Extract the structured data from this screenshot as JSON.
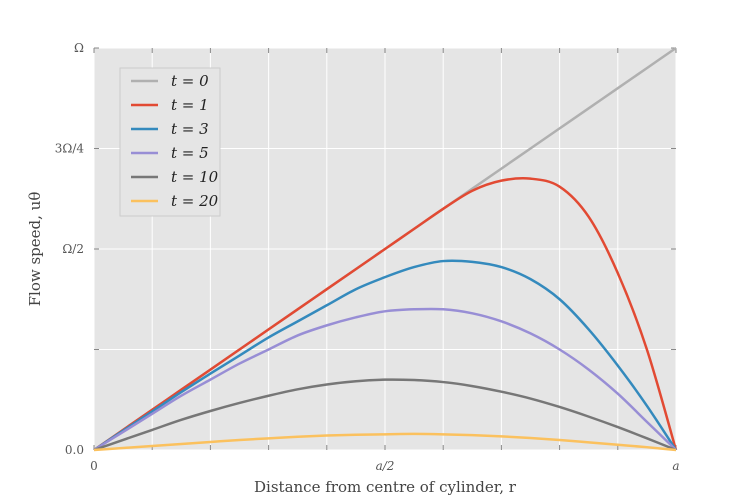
{
  "chart_data": {
    "type": "line",
    "title": "",
    "xlabel": "Distance from centre of cylinder, r",
    "ylabel": "Flow speed, uθ",
    "xlim": [
      0,
      1
    ],
    "ylim": [
      0,
      1
    ],
    "grid": true,
    "legend_position": "top-left",
    "background_color": "#e5e5e5",
    "x_ticks": [
      {
        "value": 0,
        "label": "0"
      },
      {
        "value": 0.1,
        "label": ""
      },
      {
        "value": 0.2,
        "label": ""
      },
      {
        "value": 0.3,
        "label": ""
      },
      {
        "value": 0.4,
        "label": ""
      },
      {
        "value": 0.5,
        "label": "a/2"
      },
      {
        "value": 0.6,
        "label": ""
      },
      {
        "value": 0.7,
        "label": ""
      },
      {
        "value": 0.8,
        "label": ""
      },
      {
        "value": 0.9,
        "label": ""
      },
      {
        "value": 1.0,
        "label": "a"
      }
    ],
    "y_ticks": [
      {
        "value": 0,
        "label": "0.0"
      },
      {
        "value": 0.25,
        "label": ""
      },
      {
        "value": 0.5,
        "label": "Ω/2"
      },
      {
        "value": 0.75,
        "label": "3Ω/4"
      },
      {
        "value": 1.0,
        "label": "Ω"
      }
    ],
    "x": [
      0,
      0.05,
      0.1,
      0.15,
      0.2,
      0.25,
      0.3,
      0.35,
      0.4,
      0.45,
      0.5,
      0.55,
      0.6,
      0.65,
      0.7,
      0.75,
      0.8,
      0.85,
      0.9,
      0.95,
      1.0
    ],
    "series": [
      {
        "name": "t = 0",
        "color": "#b0b0b0",
        "values": [
          0,
          0.05,
          0.1,
          0.15,
          0.2,
          0.25,
          0.3,
          0.35,
          0.4,
          0.45,
          0.5,
          0.55,
          0.6,
          0.65,
          0.7,
          0.75,
          0.8,
          0.85,
          0.9,
          0.95,
          1.0
        ]
      },
      {
        "name": "t = 1",
        "color": "#e24a33",
        "values": [
          0,
          0.05,
          0.1,
          0.15,
          0.2,
          0.25,
          0.3,
          0.35,
          0.4,
          0.45,
          0.5,
          0.55,
          0.6,
          0.645,
          0.67,
          0.675,
          0.655,
          0.58,
          0.44,
          0.25,
          0
        ]
      },
      {
        "name": "t = 3",
        "color": "#348abd",
        "values": [
          0,
          0.048,
          0.096,
          0.144,
          0.19,
          0.235,
          0.28,
          0.32,
          0.36,
          0.4,
          0.43,
          0.455,
          0.47,
          0.468,
          0.455,
          0.425,
          0.375,
          0.3,
          0.21,
          0.11,
          0
        ]
      },
      {
        "name": "t = 5",
        "color": "#988ed5",
        "values": [
          0,
          0.045,
          0.09,
          0.135,
          0.175,
          0.215,
          0.25,
          0.285,
          0.31,
          0.33,
          0.345,
          0.35,
          0.35,
          0.34,
          0.32,
          0.29,
          0.25,
          0.2,
          0.14,
          0.07,
          0
        ]
      },
      {
        "name": "t = 10",
        "color": "#777777",
        "values": [
          0,
          0.025,
          0.05,
          0.075,
          0.097,
          0.117,
          0.135,
          0.151,
          0.163,
          0.171,
          0.175,
          0.174,
          0.169,
          0.159,
          0.145,
          0.128,
          0.107,
          0.083,
          0.057,
          0.029,
          0
        ]
      },
      {
        "name": "t = 20",
        "color": "#fbc15e",
        "values": [
          0,
          0.005,
          0.01,
          0.015,
          0.02,
          0.025,
          0.029,
          0.033,
          0.036,
          0.038,
          0.039,
          0.04,
          0.039,
          0.037,
          0.034,
          0.03,
          0.025,
          0.019,
          0.013,
          0.007,
          0
        ]
      }
    ]
  }
}
